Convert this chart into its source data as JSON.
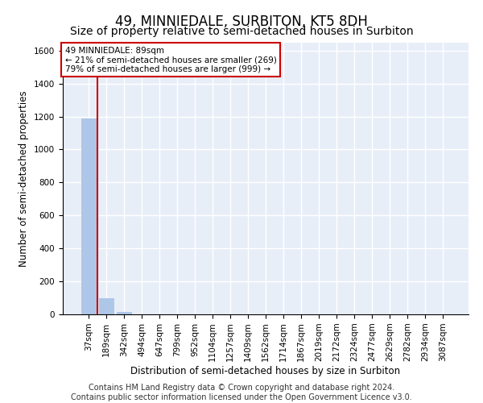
{
  "title": "49, MINNIEDALE, SURBITON, KT5 8DH",
  "subtitle": "Size of property relative to semi-detached houses in Surbiton",
  "xlabel": "Distribution of semi-detached houses by size in Surbiton",
  "ylabel": "Number of semi-detached properties",
  "categories": [
    "37sqm",
    "189sqm",
    "342sqm",
    "494sqm",
    "647sqm",
    "799sqm",
    "952sqm",
    "1104sqm",
    "1257sqm",
    "1409sqm",
    "1562sqm",
    "1714sqm",
    "1867sqm",
    "2019sqm",
    "2172sqm",
    "2324sqm",
    "2477sqm",
    "2629sqm",
    "2782sqm",
    "2934sqm",
    "3087sqm"
  ],
  "values": [
    1190,
    97,
    15,
    0,
    0,
    0,
    0,
    0,
    0,
    0,
    0,
    0,
    0,
    0,
    0,
    0,
    0,
    0,
    0,
    0,
    0
  ],
  "bar_color": "#aec6e8",
  "marker_line_color": "#cc0000",
  "ylim": [
    0,
    1650
  ],
  "yticks": [
    0,
    200,
    400,
    600,
    800,
    1000,
    1200,
    1400,
    1600
  ],
  "annotation_text": "49 MINNIEDALE: 89sqm\n← 21% of semi-detached houses are smaller (269)\n79% of semi-detached houses are larger (999) →",
  "annotation_box_color": "#ffffff",
  "annotation_box_edge": "#cc0000",
  "footer_line1": "Contains HM Land Registry data © Crown copyright and database right 2024.",
  "footer_line2": "Contains public sector information licensed under the Open Government Licence v3.0.",
  "background_color": "#e8eef8",
  "grid_color": "#ffffff",
  "title_fontsize": 12,
  "subtitle_fontsize": 10,
  "axis_label_fontsize": 8.5,
  "tick_fontsize": 7.5,
  "footer_fontsize": 7
}
